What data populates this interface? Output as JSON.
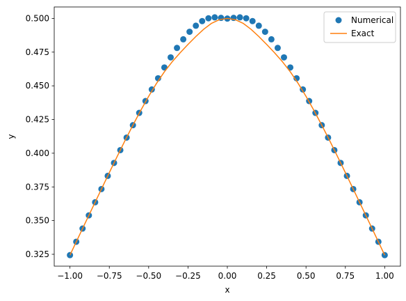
{
  "chart_data": {
    "type": "line",
    "xlabel": "x",
    "ylabel": "y",
    "xlim": [
      -1.1,
      1.1
    ],
    "ylim": [
      0.3162,
      0.5085
    ],
    "x_ticks": [
      -1.0,
      -0.75,
      -0.5,
      -0.25,
      0.0,
      0.25,
      0.5,
      0.75,
      1.0
    ],
    "x_tick_labels": [
      "−1.00",
      "−0.75",
      "−0.50",
      "−0.25",
      "0.00",
      "0.25",
      "0.50",
      "0.75",
      "1.00"
    ],
    "y_ticks": [
      0.325,
      0.35,
      0.375,
      0.4,
      0.425,
      0.45,
      0.475,
      0.5
    ],
    "y_tick_labels": [
      "0.325",
      "0.350",
      "0.375",
      "0.400",
      "0.425",
      "0.450",
      "0.475",
      "0.500"
    ],
    "grid": false,
    "legend": {
      "placement": "top-right",
      "entries": [
        "Numerical",
        "Exact"
      ]
    },
    "series": [
      {
        "name": "Numerical",
        "type": "scatter",
        "color": "#1f77b4",
        "x": [
          -1.0,
          -0.96,
          -0.92,
          -0.88,
          -0.84,
          -0.8,
          -0.76,
          -0.72,
          -0.68,
          -0.64,
          -0.6,
          -0.56,
          -0.52,
          -0.48,
          -0.44,
          -0.4,
          -0.36,
          -0.32,
          -0.28,
          -0.24,
          -0.2,
          -0.16,
          -0.12,
          -0.08,
          -0.04,
          0.0,
          0.04,
          0.08,
          0.12,
          0.16,
          0.2,
          0.24,
          0.28,
          0.32,
          0.36,
          0.4,
          0.44,
          0.48,
          0.52,
          0.56,
          0.6,
          0.64,
          0.68,
          0.72,
          0.76,
          0.8,
          0.84,
          0.88,
          0.92,
          0.96,
          1.0
        ],
        "y": [
          0.3244,
          0.3343,
          0.3441,
          0.3539,
          0.3636,
          0.3734,
          0.3832,
          0.3928,
          0.4023,
          0.4116,
          0.4208,
          0.4299,
          0.4387,
          0.4473,
          0.4556,
          0.4636,
          0.4711,
          0.4781,
          0.4845,
          0.4901,
          0.4946,
          0.498,
          0.5001,
          0.5008,
          0.5004,
          0.4999,
          0.5004,
          0.5008,
          0.5001,
          0.498,
          0.4946,
          0.4901,
          0.4845,
          0.4781,
          0.4711,
          0.4636,
          0.4556,
          0.4473,
          0.4387,
          0.4299,
          0.4208,
          0.4116,
          0.4023,
          0.3928,
          0.3832,
          0.3734,
          0.3636,
          0.3539,
          0.3441,
          0.3343,
          0.3244
        ]
      },
      {
        "name": "Exact",
        "type": "line",
        "color": "#ff7f0e",
        "x": [
          -1.0,
          -0.95,
          -0.9,
          -0.85,
          -0.8,
          -0.75,
          -0.7,
          -0.65,
          -0.6,
          -0.55,
          -0.5,
          -0.45,
          -0.4,
          -0.35,
          -0.3,
          -0.25,
          -0.2,
          -0.15,
          -0.1,
          -0.05,
          0.0,
          0.05,
          0.1,
          0.15,
          0.2,
          0.25,
          0.3,
          0.35,
          0.4,
          0.45,
          0.5,
          0.55,
          0.6,
          0.65,
          0.7,
          0.75,
          0.8,
          0.85,
          0.9,
          0.95,
          1.0
        ],
        "y": [
          0.3244,
          0.3367,
          0.349,
          0.3612,
          0.3734,
          0.3856,
          0.3976,
          0.4094,
          0.4208,
          0.4318,
          0.4422,
          0.4518,
          0.4604,
          0.4679,
          0.4745,
          0.4807,
          0.4866,
          0.492,
          0.4964,
          0.4991,
          0.5,
          0.4991,
          0.4964,
          0.492,
          0.4866,
          0.4807,
          0.4745,
          0.4679,
          0.4604,
          0.4518,
          0.4422,
          0.4318,
          0.4208,
          0.4094,
          0.3976,
          0.3856,
          0.3734,
          0.3612,
          0.349,
          0.3367,
          0.3244
        ]
      }
    ]
  }
}
